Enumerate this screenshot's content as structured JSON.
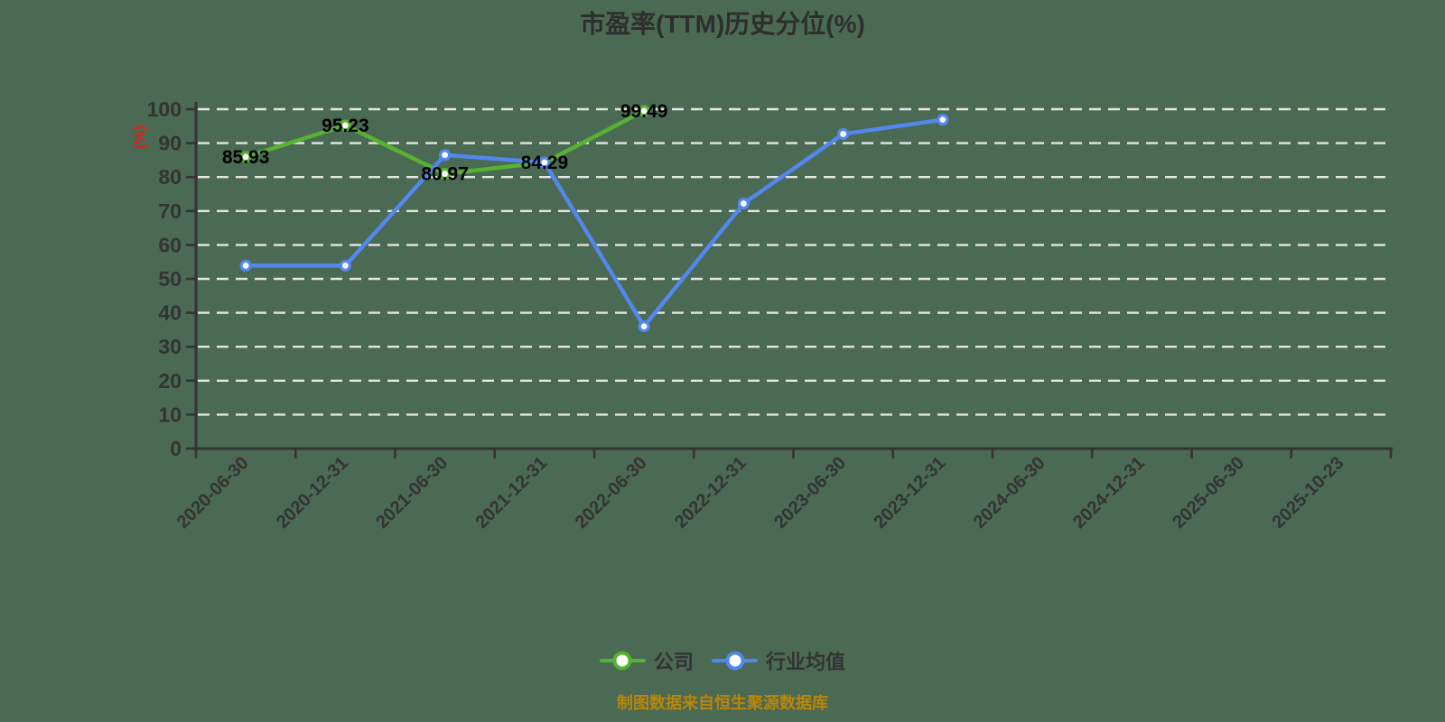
{
  "colors": {
    "background": "#4b6a54",
    "axis": "#333333",
    "grid": "#e5e5e5",
    "tick_label": "#333333",
    "title": "#2e2e2e",
    "y_unit_label": "#e01f1f",
    "caption": "#b8860b",
    "legend_text": "#333333",
    "data_label": "#000000",
    "company_series": "#57b232",
    "industry_series": "#5287ee"
  },
  "chart_data": {
    "type": "line",
    "title": "市盈率(TTM)历史分位(%)",
    "ylabel": "(%)",
    "xlabel": "",
    "caption": "制图数据来自恒生聚源数据库",
    "ylim": [
      0,
      100
    ],
    "ytick_step": 10,
    "ytick_labels": [
      "0",
      "10",
      "20",
      "30",
      "40",
      "50",
      "60",
      "70",
      "80",
      "90",
      "100"
    ],
    "grid": "horizontal-dashed",
    "legend_position": "bottom",
    "x_label_rotation": -45,
    "categories": [
      "2020-06-30",
      "2020-12-31",
      "2021-06-30",
      "2021-12-31",
      "2022-06-30",
      "2022-12-31",
      "2023-06-30",
      "2023-12-31",
      "2024-06-30",
      "2024-12-31",
      "2025-06-30",
      "2025-10-23"
    ],
    "series": [
      {
        "name": "公司",
        "color": "#57b232",
        "show_labels": true,
        "values": [
          85.93,
          95.23,
          80.97,
          84.29,
          99.49,
          null,
          null,
          null,
          null,
          null,
          null,
          null
        ],
        "labels": [
          "85.93",
          "95.23",
          "80.97",
          "84.29",
          "99.49",
          null,
          null,
          null,
          null,
          null,
          null,
          null
        ]
      },
      {
        "name": "行业均值",
        "color": "#5287ee",
        "show_labels": false,
        "values": [
          53.9,
          53.9,
          86.5,
          84.3,
          36.0,
          72.2,
          92.7,
          96.9,
          null,
          null,
          null,
          null
        ],
        "labels": [
          null,
          null,
          null,
          null,
          null,
          null,
          null,
          null,
          null,
          null,
          null,
          null
        ]
      }
    ]
  }
}
